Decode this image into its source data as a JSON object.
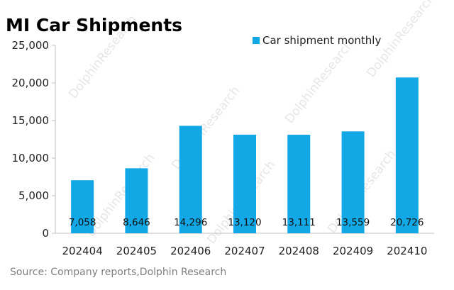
{
  "chart_data": {
    "type": "bar",
    "title": "MI Car Shipments",
    "categories": [
      "202404",
      "202405",
      "202406",
      "202407",
      "202408",
      "202409",
      "202410"
    ],
    "series": [
      {
        "name": "Car shipment monthly",
        "values": [
          7058,
          8646,
          14296,
          13120,
          13111,
          13559,
          20726
        ],
        "labels": [
          "7,058",
          "8,646",
          "14,296",
          "13,120",
          "13,111",
          "13,559",
          "20,726"
        ],
        "color": "#12a8e6"
      }
    ],
    "ylim": [
      0,
      25000
    ],
    "yticks": [
      0,
      5000,
      10000,
      15000,
      20000,
      25000
    ],
    "ytick_labels": [
      "0",
      "5,000",
      "10,000",
      "15,000",
      "20,000",
      "25,000"
    ],
    "xlabel": "",
    "ylabel": "",
    "grid": false,
    "legend": "top-right",
    "source": "Source: Company reports,Dolphin Research",
    "watermark": "DolphinResearch"
  }
}
